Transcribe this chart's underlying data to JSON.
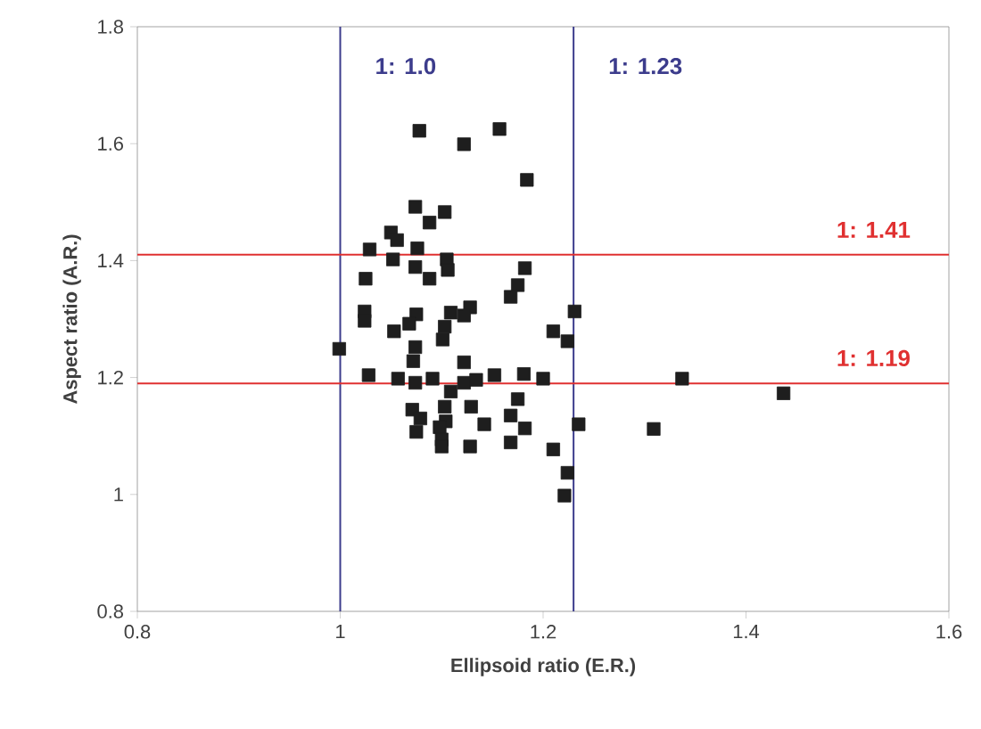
{
  "chart_data": {
    "type": "scatter",
    "xlabel": "Ellipsoid ratio (E.R.)",
    "ylabel": "Aspect ratio (A.R.)",
    "xlim": [
      0.8,
      1.6
    ],
    "ylim": [
      0.8,
      1.8
    ],
    "xticks": [
      0.8,
      1,
      1.2,
      1.4,
      1.6
    ],
    "yticks": [
      0.8,
      1,
      1.2,
      1.4,
      1.6,
      1.8
    ],
    "grid": false,
    "marker": "square",
    "series": [
      {
        "color": "#1e1e1e",
        "x": [
          1.078,
          1.122,
          1.157,
          1.184,
          1.074,
          1.103,
          1.088,
          1.05,
          1.056,
          1.029,
          1.076,
          1.052,
          1.105,
          1.074,
          1.106,
          1.088,
          1.025,
          1.182,
          1.175,
          1.168,
          1.024,
          1.024,
          1.075,
          1.068,
          1.053,
          1.109,
          1.128,
          1.122,
          1.103,
          1.101,
          1.231,
          1.21,
          1.224,
          0.999,
          1.074,
          1.072,
          1.122,
          1.028,
          1.057,
          1.074,
          1.091,
          1.122,
          1.134,
          1.152,
          1.181,
          1.2,
          1.337,
          1.437,
          1.109,
          1.071,
          1.079,
          1.103,
          1.104,
          1.129,
          1.175,
          1.168,
          1.075,
          1.098,
          1.1,
          1.1,
          1.142,
          1.182,
          1.168,
          1.128,
          1.21,
          1.235,
          1.309,
          1.224,
          1.221
        ],
        "values": [
          1.622,
          1.599,
          1.625,
          1.538,
          1.492,
          1.483,
          1.465,
          1.448,
          1.435,
          1.419,
          1.421,
          1.402,
          1.402,
          1.389,
          1.384,
          1.369,
          1.369,
          1.387,
          1.358,
          1.338,
          1.313,
          1.297,
          1.308,
          1.292,
          1.279,
          1.311,
          1.32,
          1.306,
          1.287,
          1.265,
          1.313,
          1.279,
          1.262,
          1.249,
          1.252,
          1.228,
          1.226,
          1.204,
          1.198,
          1.191,
          1.198,
          1.191,
          1.196,
          1.204,
          1.206,
          1.198,
          1.198,
          1.173,
          1.176,
          1.145,
          1.13,
          1.15,
          1.125,
          1.15,
          1.163,
          1.135,
          1.107,
          1.115,
          1.094,
          1.082,
          1.12,
          1.113,
          1.089,
          1.082,
          1.077,
          1.12,
          1.112,
          1.037,
          0.998
        ]
      }
    ],
    "ref_lines": [
      {
        "axis": "x",
        "value": 1.0,
        "label": "1: 1.0",
        "color": "#3c3c8c"
      },
      {
        "axis": "x",
        "value": 1.23,
        "label": "1: 1.23",
        "color": "#3c3c8c"
      },
      {
        "axis": "y",
        "value": 1.41,
        "label": "1: 1.41",
        "color": "#e03030"
      },
      {
        "axis": "y",
        "value": 1.19,
        "label": "1: 1.19",
        "color": "#e03030"
      }
    ]
  }
}
